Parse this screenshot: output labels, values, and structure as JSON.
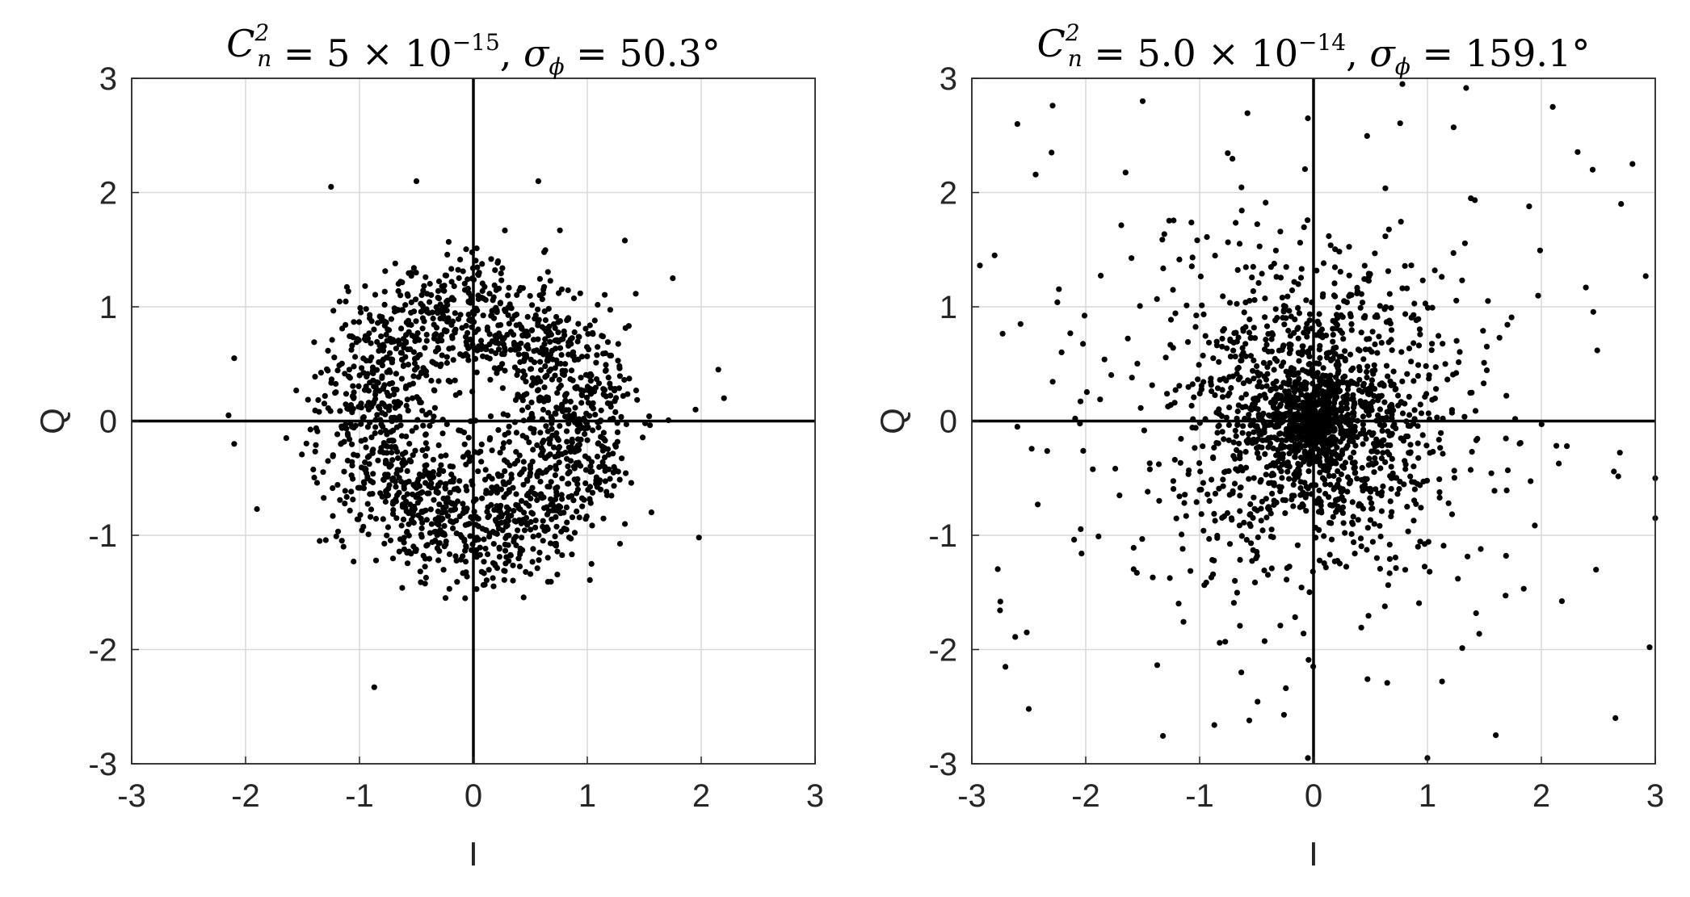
{
  "chart_data": [
    {
      "type": "scatter",
      "title_parts": {
        "lhs": "C",
        "sub": "n",
        "sup": "2",
        "eq1": " = 5 × 10",
        "exp": "−15",
        "sep": ",  ",
        "sigma": "σ",
        "sigma_sub": "ϕ",
        "eq2": " = 50.3°"
      },
      "xlabel": "I",
      "ylabel": "Q",
      "xlim": [
        -3,
        3
      ],
      "ylim": [
        -3,
        3
      ],
      "xticks": [
        "-3",
        "-2",
        "-1",
        "0",
        "1",
        "2",
        "3"
      ],
      "yticks": [
        "-3",
        "-2",
        "-1",
        "0",
        "1",
        "2",
        "3"
      ],
      "grid": true,
      "distribution": "ring",
      "ring_radius": 0.95,
      "ring_spread": 0.28,
      "n_points": 1800,
      "outliers": [
        [
          -1.25,
          2.05
        ],
        [
          -0.5,
          2.1
        ],
        [
          0.57,
          2.1
        ],
        [
          -2.1,
          0.55
        ],
        [
          -2.15,
          0.05
        ],
        [
          2.15,
          0.45
        ],
        [
          2.2,
          0.2
        ],
        [
          -0.87,
          -2.33
        ],
        [
          1.98,
          -1.02
        ],
        [
          1.95,
          0.1
        ],
        [
          -1.9,
          -0.77
        ],
        [
          1.75,
          1.25
        ],
        [
          -2.1,
          -0.2
        ],
        [
          1.33,
          1.58
        ]
      ]
    },
    {
      "type": "scatter",
      "title_parts": {
        "lhs": "C",
        "sub": "n",
        "sup": "2",
        "eq1": " = 5.0 × 10",
        "exp": "−14",
        "sep": ",  ",
        "sigma": "σ",
        "sigma_sub": "ϕ",
        "eq2": " = 159.1°"
      },
      "xlabel": "I",
      "ylabel": "Q",
      "xlim": [
        -3,
        3
      ],
      "ylim": [
        -3,
        3
      ],
      "xticks": [
        "-3",
        "-2",
        "-1",
        "0",
        "1",
        "2",
        "3"
      ],
      "yticks": [
        "-3",
        "-2",
        "-1",
        "0",
        "1",
        "2",
        "3"
      ],
      "grid": true,
      "distribution": "gaussian-center",
      "gauss_sigma": 0.75,
      "n_points": 2000,
      "outliers": [
        [
          -2.6,
          2.6
        ],
        [
          -1.5,
          2.8
        ],
        [
          2.1,
          2.75
        ],
        [
          2.8,
          2.25
        ],
        [
          -2.8,
          1.45
        ],
        [
          2.7,
          1.9
        ],
        [
          -2.75,
          -1.58
        ],
        [
          -2.5,
          -2.52
        ],
        [
          2.95,
          -1.98
        ],
        [
          2.65,
          -2.6
        ],
        [
          0.78,
          2.95
        ],
        [
          -0.05,
          2.65
        ],
        [
          1.6,
          -2.75
        ],
        [
          -0.05,
          -2.95
        ],
        [
          1.0,
          -2.95
        ],
        [
          3.0,
          -0.5
        ],
        [
          3.0,
          -0.85
        ],
        [
          2.45,
          2.2
        ],
        [
          -2.3,
          2.35
        ],
        [
          -2.6,
          -0.05
        ]
      ]
    }
  ]
}
